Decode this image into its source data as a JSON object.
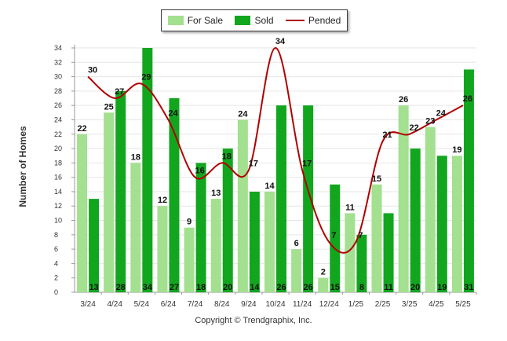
{
  "chart_data": {
    "type": "bar",
    "categories": [
      "3/24",
      "4/24",
      "5/24",
      "6/24",
      "7/24",
      "8/24",
      "9/24",
      "10/24",
      "11/24",
      "12/24",
      "1/25",
      "2/25",
      "3/25",
      "4/25",
      "5/25"
    ],
    "series": [
      {
        "name": "For Sale",
        "type": "bar",
        "color": "#a3e08f",
        "values": [
          22,
          25,
          18,
          12,
          9,
          13,
          24,
          14,
          6,
          2,
          11,
          15,
          26,
          23,
          19
        ]
      },
      {
        "name": "Sold",
        "type": "bar",
        "color": "#12a61e",
        "values": [
          13,
          28,
          34,
          27,
          18,
          20,
          14,
          26,
          26,
          15,
          8,
          11,
          20,
          19,
          31
        ]
      },
      {
        "name": "Pended",
        "type": "line",
        "color": "#b00000",
        "values": [
          30,
          27,
          29,
          24,
          16,
          18,
          17,
          34,
          17,
          7,
          7,
          21,
          22,
          24,
          26
        ]
      }
    ],
    "ylabel": "Number of Homes",
    "xlabel": "",
    "ylim": [
      0,
      34
    ],
    "yticks": [
      0,
      2,
      4,
      6,
      8,
      10,
      12,
      14,
      16,
      18,
      20,
      22,
      24,
      26,
      28,
      30,
      32,
      34
    ],
    "grid": true,
    "legend_position": "top-center"
  },
  "copyright": "Copyright © Trendgraphix, Inc."
}
